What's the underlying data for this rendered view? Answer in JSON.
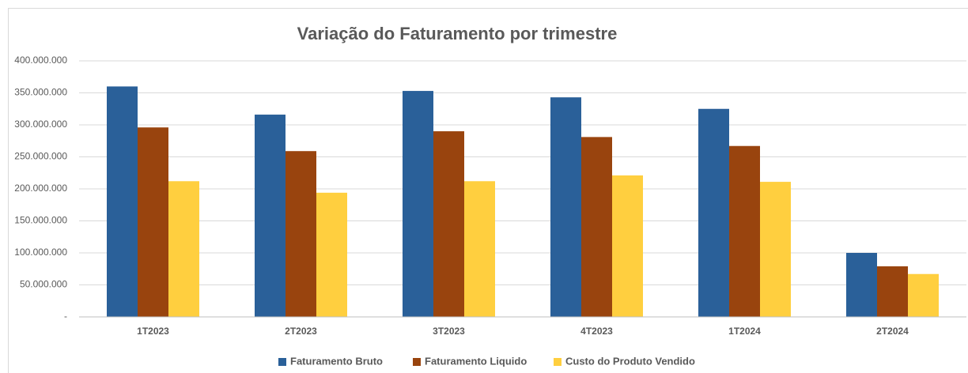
{
  "chart_data": {
    "type": "bar",
    "title": "Variação do Faturamento por trimestre",
    "categories": [
      "1T2023",
      "2T2023",
      "3T2023",
      "4T2023",
      "1T2024",
      "2T2024"
    ],
    "series": [
      {
        "name": "Faturamento Bruto",
        "color": "#2a6099",
        "values": [
          360000000,
          316000000,
          353000000,
          343000000,
          325000000,
          100000000
        ]
      },
      {
        "name": "Faturamento Liquido",
        "color": "#99440e",
        "values": [
          296000000,
          259000000,
          290000000,
          281000000,
          267000000,
          79000000
        ]
      },
      {
        "name": "Custo do Produto Vendido",
        "color": "#ffcf3f",
        "values": [
          212000000,
          194000000,
          212000000,
          221000000,
          211000000,
          67000000
        ]
      }
    ],
    "ylim": [
      0,
      400000000
    ],
    "yticks": [
      {
        "value": 0,
        "label": "-"
      },
      {
        "value": 50000000,
        "label": "50.000.000"
      },
      {
        "value": 100000000,
        "label": "100.000.000"
      },
      {
        "value": 150000000,
        "label": "150.000.000"
      },
      {
        "value": 200000000,
        "label": "200.000.000"
      },
      {
        "value": 250000000,
        "label": "250.000.000"
      },
      {
        "value": 300000000,
        "label": "300.000.000"
      },
      {
        "value": 350000000,
        "label": "350.000.000"
      },
      {
        "value": 400000000,
        "label": "400.000.000"
      }
    ],
    "grid": true,
    "legend": "bottom"
  }
}
